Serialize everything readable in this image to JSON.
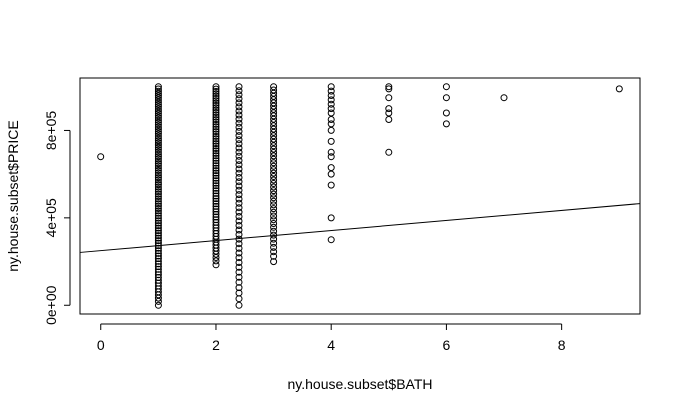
{
  "chart_data": {
    "type": "scatter",
    "title": "",
    "xlabel": "ny.house.subset$BATH",
    "ylabel": "ny.house.subset$PRICE",
    "xlim": [
      -0.36,
      9.36
    ],
    "ylim": [
      -40000,
      1040000
    ],
    "x_ticks": [
      0,
      2,
      4,
      6,
      8
    ],
    "x_tick_labels": [
      "0",
      "2",
      "4",
      "6",
      "8"
    ],
    "y_ticks": [
      0,
      400000,
      800000
    ],
    "y_tick_labels": [
      "0e+00",
      "4e+05",
      "8e+05"
    ],
    "grid": false,
    "marker": "open-circle",
    "color": "#000000",
    "point_groups": [
      {
        "x": 0,
        "values": [
          680000
        ]
      },
      {
        "x": 1,
        "count": 90,
        "y_min": 0,
        "y_max": 1000000
      },
      {
        "x": 2,
        "count": 70,
        "y_min": 185000,
        "y_max": 1000000
      },
      {
        "x": 2.4,
        "count": 50,
        "y_min": 0,
        "y_max": 1000000
      },
      {
        "x": 3,
        "count": 50,
        "y_min": 200000,
        "y_max": 1000000
      },
      {
        "x": 4,
        "values": [
          300000,
          400000,
          550000,
          600000,
          630000,
          680000,
          700000,
          750000,
          800000,
          830000,
          850000,
          880000,
          900000,
          920000,
          940000,
          960000,
          980000,
          1000000
        ]
      },
      {
        "x": 5,
        "values": [
          700000,
          850000,
          880000,
          900000,
          950000,
          990000,
          1000000
        ]
      },
      {
        "x": 6,
        "values": [
          830000,
          880000,
          950000,
          1000000
        ]
      },
      {
        "x": 7,
        "values": [
          950000
        ]
      },
      {
        "x": 9,
        "values": [
          990000
        ]
      }
    ],
    "regression_line": {
      "intercept": 250000,
      "slope": 23000,
      "x_range": [
        -0.36,
        9.36
      ]
    }
  }
}
